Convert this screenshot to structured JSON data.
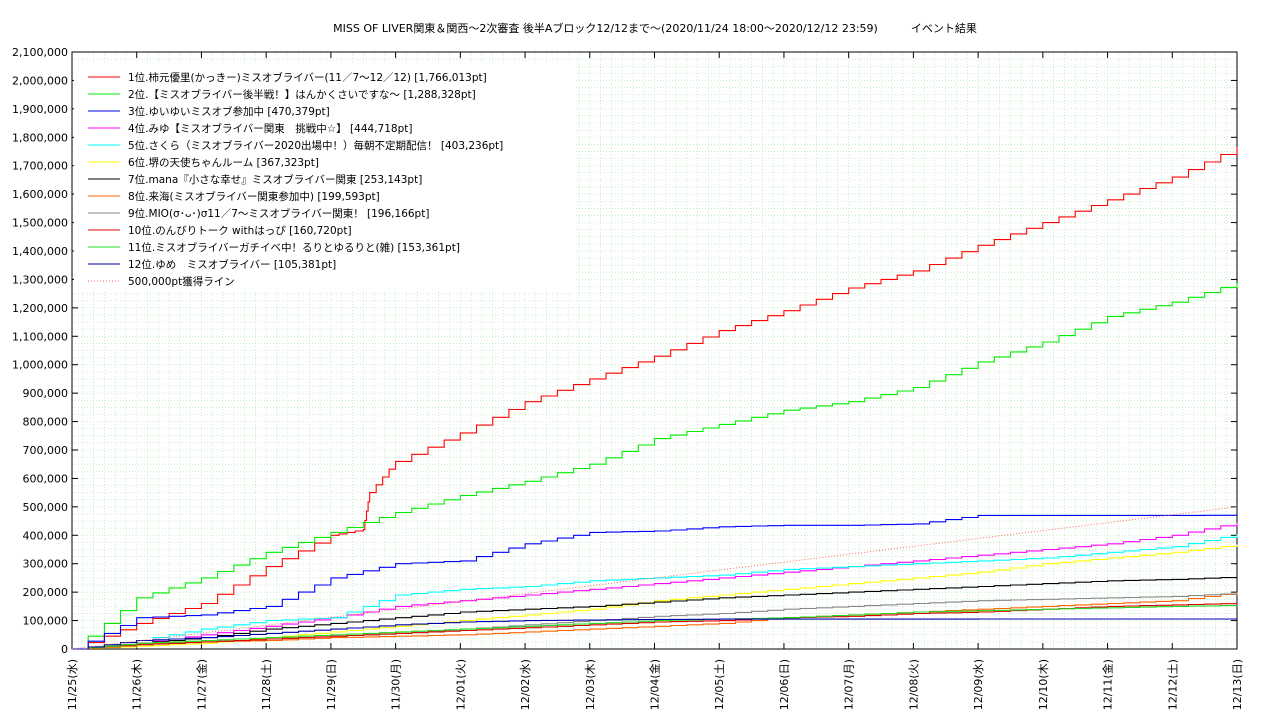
{
  "chart_data": {
    "type": "line",
    "title": "MISS OF LIVER関東＆関西〜2次審査 後半Aブロック12/12まで〜(2020/11/24 18:00〜2020/12/12 23:59)　　　イベント結果",
    "xlabel": "",
    "ylabel": "",
    "ylim": [
      0,
      2100000
    ],
    "y_ticks": [
      0,
      100000,
      200000,
      300000,
      400000,
      500000,
      600000,
      700000,
      800000,
      900000,
      1000000,
      1100000,
      1200000,
      1300000,
      1400000,
      1500000,
      1600000,
      1700000,
      1800000,
      1900000,
      2000000,
      2100000
    ],
    "y_tick_labels": [
      "0",
      "100,000",
      "200,000",
      "300,000",
      "400,000",
      "500,000",
      "600,000",
      "700,000",
      "800,000",
      "900,000",
      "1,000,000",
      "1,100,000",
      "1,200,000",
      "1,300,000",
      "1,400,000",
      "1,500,000",
      "1,600,000",
      "1,700,000",
      "1,800,000",
      "1,900,000",
      "2,000,000",
      "2,100,000"
    ],
    "x_range": [
      "2020-11-25",
      "2020-12-13"
    ],
    "x_tick_labels": [
      "11/25(水)",
      "11/26(木)",
      "11/27(金)",
      "11/28(土)",
      "11/29(日)",
      "11/30(月)",
      "12/01(火)",
      "12/02(水)",
      "12/03(木)",
      "12/04(金)",
      "12/05(土)",
      "12/06(日)",
      "12/07(月)",
      "12/08(火)",
      "12/09(水)",
      "12/10(木)",
      "12/11(金)",
      "12/12(土)",
      "12/13(日)"
    ],
    "grid": true,
    "legend_position": "top-left",
    "series": [
      {
        "name": "1位.柿元優里(かっきー)ミスオブライバー(11／7〜12／12) [1,766,013pt]",
        "color": "#ff0000",
        "dash": false,
        "points": [
          [
            "2020-11-25",
            0
          ],
          [
            "2020-11-26",
            90000
          ],
          [
            "2020-11-27",
            160000
          ],
          [
            "2020-11-28",
            290000
          ],
          [
            "2020-11-29",
            400000
          ],
          [
            "2020-11-29.5",
            420000
          ],
          [
            "2020-11-29.6",
            550000
          ],
          [
            "2020-11-30",
            660000
          ],
          [
            "2020-12-01",
            760000
          ],
          [
            "2020-12-02",
            870000
          ],
          [
            "2020-12-03",
            950000
          ],
          [
            "2020-12-04",
            1030000
          ],
          [
            "2020-12-05",
            1120000
          ],
          [
            "2020-12-06",
            1190000
          ],
          [
            "2020-12-07",
            1270000
          ],
          [
            "2020-12-08",
            1330000
          ],
          [
            "2020-12-09",
            1420000
          ],
          [
            "2020-12-10",
            1500000
          ],
          [
            "2020-12-11",
            1580000
          ],
          [
            "2020-12-12",
            1660000
          ],
          [
            "2020-12-13",
            1766013
          ]
        ]
      },
      {
        "name": "2位.【ミスオブライバー後半戦！】はんかくさいですな〜 [1,288,328pt]",
        "color": "#00ee00",
        "dash": false,
        "points": [
          [
            "2020-11-25",
            0
          ],
          [
            "2020-11-26",
            180000
          ],
          [
            "2020-11-27",
            250000
          ],
          [
            "2020-11-28",
            340000
          ],
          [
            "2020-11-29",
            410000
          ],
          [
            "2020-11-30",
            480000
          ],
          [
            "2020-12-01",
            540000
          ],
          [
            "2020-12-02",
            590000
          ],
          [
            "2020-12-03",
            650000
          ],
          [
            "2020-12-04",
            740000
          ],
          [
            "2020-12-05",
            790000
          ],
          [
            "2020-12-06",
            840000
          ],
          [
            "2020-12-07",
            870000
          ],
          [
            "2020-12-08",
            920000
          ],
          [
            "2020-12-09",
            1010000
          ],
          [
            "2020-12-10",
            1080000
          ],
          [
            "2020-12-11",
            1170000
          ],
          [
            "2020-12-12",
            1220000
          ],
          [
            "2020-12-13",
            1288328
          ]
        ]
      },
      {
        "name": "3位.ゆいゆいミスオブ参加中 [470,379pt]",
        "color": "#0000ff",
        "dash": false,
        "points": [
          [
            "2020-11-25",
            0
          ],
          [
            "2020-11-26",
            110000
          ],
          [
            "2020-11-27",
            120000
          ],
          [
            "2020-11-28",
            150000
          ],
          [
            "2020-11-29",
            250000
          ],
          [
            "2020-11-30",
            300000
          ],
          [
            "2020-12-01",
            310000
          ],
          [
            "2020-12-02",
            370000
          ],
          [
            "2020-12-03",
            410000
          ],
          [
            "2020-12-04",
            415000
          ],
          [
            "2020-12-05",
            430000
          ],
          [
            "2020-12-06",
            435000
          ],
          [
            "2020-12-07",
            435000
          ],
          [
            "2020-12-08",
            440000
          ],
          [
            "2020-12-09",
            470000
          ],
          [
            "2020-12-10",
            470000
          ],
          [
            "2020-12-11",
            470000
          ],
          [
            "2020-12-12",
            470000
          ],
          [
            "2020-12-13",
            470379
          ]
        ]
      },
      {
        "name": "4位.みゆ【ミスオブライバー関東　挑戦中☆】 [444,718pt]",
        "color": "#ff00ff",
        "dash": false,
        "points": [
          [
            "2020-11-25",
            0
          ],
          [
            "2020-11-26",
            20000
          ],
          [
            "2020-11-27",
            50000
          ],
          [
            "2020-11-28",
            80000
          ],
          [
            "2020-11-29",
            110000
          ],
          [
            "2020-11-30",
            150000
          ],
          [
            "2020-12-01",
            170000
          ],
          [
            "2020-12-02",
            190000
          ],
          [
            "2020-12-03",
            210000
          ],
          [
            "2020-12-04",
            230000
          ],
          [
            "2020-12-05",
            250000
          ],
          [
            "2020-12-06",
            270000
          ],
          [
            "2020-12-07",
            290000
          ],
          [
            "2020-12-08",
            310000
          ],
          [
            "2020-12-09",
            330000
          ],
          [
            "2020-12-10",
            350000
          ],
          [
            "2020-12-11",
            370000
          ],
          [
            "2020-12-12",
            400000
          ],
          [
            "2020-12-13",
            444718
          ]
        ]
      },
      {
        "name": "5位.さくら（ミスオブライバー2020出場中！）毎朝不定期配信！ [403,236pt]",
        "color": "#00ffff",
        "dash": false,
        "points": [
          [
            "2020-11-25",
            0
          ],
          [
            "2020-11-26",
            30000
          ],
          [
            "2020-11-27",
            70000
          ],
          [
            "2020-11-28",
            100000
          ],
          [
            "2020-11-29",
            110000
          ],
          [
            "2020-11-30",
            190000
          ],
          [
            "2020-12-01",
            210000
          ],
          [
            "2020-12-02",
            220000
          ],
          [
            "2020-12-03",
            240000
          ],
          [
            "2020-12-04",
            250000
          ],
          [
            "2020-12-05",
            260000
          ],
          [
            "2020-12-06",
            280000
          ],
          [
            "2020-12-07",
            290000
          ],
          [
            "2020-12-08",
            300000
          ],
          [
            "2020-12-09",
            310000
          ],
          [
            "2020-12-10",
            320000
          ],
          [
            "2020-12-11",
            340000
          ],
          [
            "2020-12-12",
            360000
          ],
          [
            "2020-12-13",
            403236
          ]
        ]
      },
      {
        "name": "6位.堺の天使ちゃんルーム [367,323pt]",
        "color": "#ffff00",
        "dash": false,
        "points": [
          [
            "2020-11-25",
            0
          ],
          [
            "2020-11-26",
            10000
          ],
          [
            "2020-11-27",
            20000
          ],
          [
            "2020-11-28",
            40000
          ],
          [
            "2020-11-29",
            60000
          ],
          [
            "2020-11-30",
            80000
          ],
          [
            "2020-12-01",
            100000
          ],
          [
            "2020-12-02",
            120000
          ],
          [
            "2020-12-03",
            140000
          ],
          [
            "2020-12-04",
            170000
          ],
          [
            "2020-12-05",
            190000
          ],
          [
            "2020-12-06",
            210000
          ],
          [
            "2020-12-07",
            230000
          ],
          [
            "2020-12-08",
            250000
          ],
          [
            "2020-12-09",
            270000
          ],
          [
            "2020-12-10",
            300000
          ],
          [
            "2020-12-11",
            320000
          ],
          [
            "2020-12-12",
            340000
          ],
          [
            "2020-12-13",
            367323
          ]
        ]
      },
      {
        "name": "7位.mana『小さな幸せ』ミスオブライバー関東 [253,143pt]",
        "color": "#000000",
        "dash": false,
        "points": [
          [
            "2020-11-25",
            0
          ],
          [
            "2020-11-26",
            20000
          ],
          [
            "2020-11-27",
            40000
          ],
          [
            "2020-11-28",
            70000
          ],
          [
            "2020-11-29",
            90000
          ],
          [
            "2020-11-30",
            110000
          ],
          [
            "2020-12-01",
            130000
          ],
          [
            "2020-12-02",
            140000
          ],
          [
            "2020-12-03",
            150000
          ],
          [
            "2020-12-04",
            165000
          ],
          [
            "2020-12-05",
            180000
          ],
          [
            "2020-12-06",
            190000
          ],
          [
            "2020-12-07",
            200000
          ],
          [
            "2020-12-08",
            210000
          ],
          [
            "2020-12-09",
            220000
          ],
          [
            "2020-12-10",
            230000
          ],
          [
            "2020-12-11",
            240000
          ],
          [
            "2020-12-12",
            245000
          ],
          [
            "2020-12-13",
            253143
          ]
        ]
      },
      {
        "name": "8位.来海(ミスオブライバー関東参加中) [199,593pt]",
        "color": "#ff6600",
        "dash": false,
        "points": [
          [
            "2020-11-25",
            0
          ],
          [
            "2020-11-26",
            20000
          ],
          [
            "2020-11-27",
            25000
          ],
          [
            "2020-11-28",
            30000
          ],
          [
            "2020-11-29",
            40000
          ],
          [
            "2020-11-30",
            45000
          ],
          [
            "2020-12-01",
            50000
          ],
          [
            "2020-12-02",
            60000
          ],
          [
            "2020-12-03",
            70000
          ],
          [
            "2020-12-04",
            80000
          ],
          [
            "2020-12-05",
            90000
          ],
          [
            "2020-12-06",
            110000
          ],
          [
            "2020-12-07",
            120000
          ],
          [
            "2020-12-08",
            130000
          ],
          [
            "2020-12-09",
            140000
          ],
          [
            "2020-12-10",
            150000
          ],
          [
            "2020-12-11",
            160000
          ],
          [
            "2020-12-12",
            170000
          ],
          [
            "2020-12-13",
            199593
          ]
        ]
      },
      {
        "name": "9位.MIO(σ･ᴗ･)σ11／7〜ミスオブライバー関東！ [196,166pt]",
        "color": "#888888",
        "dash": false,
        "points": [
          [
            "2020-11-25",
            0
          ],
          [
            "2020-11-26",
            15000
          ],
          [
            "2020-11-27",
            25000
          ],
          [
            "2020-11-28",
            35000
          ],
          [
            "2020-11-29",
            45000
          ],
          [
            "2020-11-30",
            55000
          ],
          [
            "2020-12-01",
            70000
          ],
          [
            "2020-12-02",
            85000
          ],
          [
            "2020-12-03",
            100000
          ],
          [
            "2020-12-04",
            115000
          ],
          [
            "2020-12-05",
            125000
          ],
          [
            "2020-12-06",
            140000
          ],
          [
            "2020-12-07",
            150000
          ],
          [
            "2020-12-08",
            160000
          ],
          [
            "2020-12-09",
            170000
          ],
          [
            "2020-12-10",
            175000
          ],
          [
            "2020-12-11",
            180000
          ],
          [
            "2020-12-12",
            185000
          ],
          [
            "2020-12-13",
            196166
          ]
        ]
      },
      {
        "name": "10位.のんびりトーク withはっぴ [160,720pt]",
        "color": "#dd0000",
        "dash": false,
        "points": [
          [
            "2020-11-25",
            0
          ],
          [
            "2020-11-26",
            15000
          ],
          [
            "2020-11-27",
            25000
          ],
          [
            "2020-11-28",
            35000
          ],
          [
            "2020-11-29",
            45000
          ],
          [
            "2020-11-30",
            55000
          ],
          [
            "2020-12-01",
            65000
          ],
          [
            "2020-12-02",
            75000
          ],
          [
            "2020-12-03",
            85000
          ],
          [
            "2020-12-04",
            95000
          ],
          [
            "2020-12-05",
            100000
          ],
          [
            "2020-12-06",
            110000
          ],
          [
            "2020-12-07",
            115000
          ],
          [
            "2020-12-08",
            125000
          ],
          [
            "2020-12-09",
            130000
          ],
          [
            "2020-12-10",
            140000
          ],
          [
            "2020-12-11",
            150000
          ],
          [
            "2020-12-12",
            155000
          ],
          [
            "2020-12-13",
            160720
          ]
        ]
      },
      {
        "name": "11位.ミスオブライバーガチイベ中！るりとゆるりと(雑) [153,361pt]",
        "color": "#22dd22",
        "dash": false,
        "points": [
          [
            "2020-11-25",
            0
          ],
          [
            "2020-11-26",
            20000
          ],
          [
            "2020-11-27",
            30000
          ],
          [
            "2020-11-28",
            40000
          ],
          [
            "2020-11-29",
            50000
          ],
          [
            "2020-11-30",
            60000
          ],
          [
            "2020-12-01",
            70000
          ],
          [
            "2020-12-02",
            80000
          ],
          [
            "2020-12-03",
            90000
          ],
          [
            "2020-12-04",
            100000
          ],
          [
            "2020-12-05",
            105000
          ],
          [
            "2020-12-06",
            110000
          ],
          [
            "2020-12-07",
            120000
          ],
          [
            "2020-12-08",
            130000
          ],
          [
            "2020-12-09",
            135000
          ],
          [
            "2020-12-10",
            140000
          ],
          [
            "2020-12-11",
            145000
          ],
          [
            "2020-12-12",
            150000
          ],
          [
            "2020-12-13",
            153361
          ]
        ]
      },
      {
        "name": "12位.ゆめ　ミスオブライバー [105,381pt]",
        "color": "#0000aa",
        "dash": false,
        "points": [
          [
            "2020-11-25",
            0
          ],
          [
            "2020-11-26",
            30000
          ],
          [
            "2020-11-27",
            40000
          ],
          [
            "2020-11-28",
            55000
          ],
          [
            "2020-11-29",
            70000
          ],
          [
            "2020-11-30",
            85000
          ],
          [
            "2020-12-01",
            95000
          ],
          [
            "2020-12-02",
            100000
          ],
          [
            "2020-12-03",
            102000
          ],
          [
            "2020-12-04",
            104000
          ],
          [
            "2020-12-05",
            105000
          ],
          [
            "2020-12-06",
            105000
          ],
          [
            "2020-12-07",
            105000
          ],
          [
            "2020-12-08",
            105000
          ],
          [
            "2020-12-09",
            105381
          ],
          [
            "2020-12-10",
            105381
          ],
          [
            "2020-12-11",
            105381
          ],
          [
            "2020-12-12",
            105381
          ],
          [
            "2020-12-13",
            105381
          ]
        ]
      },
      {
        "name": "500,000pt獲得ライン",
        "color": "#ff6666",
        "dash": true,
        "points": [
          [
            "2020-11-25",
            0
          ],
          [
            "2020-12-13",
            500000
          ]
        ]
      }
    ]
  }
}
